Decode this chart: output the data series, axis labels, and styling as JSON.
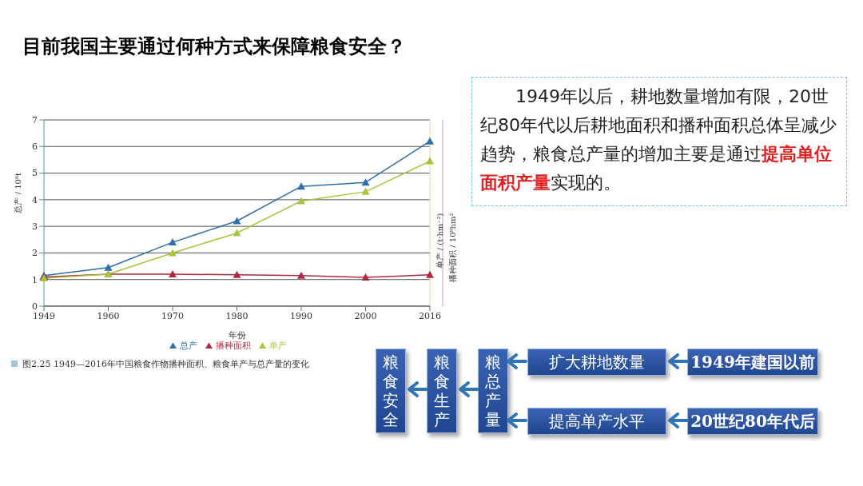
{
  "chart_data": {
    "type": "line",
    "title": "目前我国主要通过何种方式来保障粮食安全？",
    "categories": [
      "1949",
      "1960",
      "1970",
      "1980",
      "1990",
      "2000",
      "2016"
    ],
    "series": [
      {
        "name": "总产",
        "color": "#2e6fa8",
        "values": [
          1.15,
          1.45,
          2.4,
          3.2,
          4.5,
          4.65,
          6.2
        ]
      },
      {
        "name": "播种面积",
        "color": "#b0283f",
        "values": [
          1.1,
          1.2,
          1.2,
          1.18,
          1.15,
          1.08,
          1.18
        ]
      },
      {
        "name": "单产",
        "color": "#a8c43a",
        "values": [
          1.05,
          1.2,
          2.0,
          2.75,
          3.95,
          4.3,
          5.45
        ]
      }
    ],
    "xlabel": "年份",
    "ylabel": "总产 / 10⁸t",
    "y2label": "单产 / (t·hm⁻²)",
    "y3label": "播种面积 / 10⁸hm²",
    "ylim": [
      0,
      7
    ],
    "yticks": [
      0,
      1,
      2,
      3,
      4,
      5,
      6,
      7
    ],
    "grid": "y",
    "legend": "bottom",
    "marker": "triangle",
    "line_style": "solid",
    "annotations": [
      "1949年以后，耕地数量增加有限，20世纪80年代以后耕地面积和播种面积总体呈减少趋势，粮食总产量的增加主要是通过",
      "提高单位面积产量",
      "实现的。",
      "图2.25  1949—2016年中国粮食作物播种面积、粮食单产与总产量的变化",
      "粮食安全",
      "粮食生产",
      "粮总产量",
      "扩大耕地数量",
      "1949年建国以前",
      "提高单产水平",
      "20世纪80年代后"
    ]
  }
}
